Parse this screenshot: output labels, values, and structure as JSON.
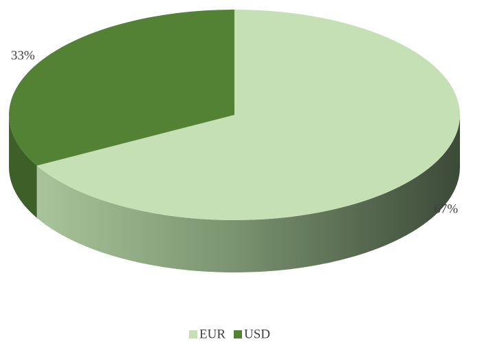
{
  "chart_data": {
    "type": "pie",
    "categories": [
      "EUR",
      "USD"
    ],
    "values": [
      67,
      33
    ],
    "value_labels": [
      "67%",
      "33%"
    ],
    "colors": [
      "#c5e0b4",
      "#548235"
    ],
    "legend": "bottom"
  }
}
